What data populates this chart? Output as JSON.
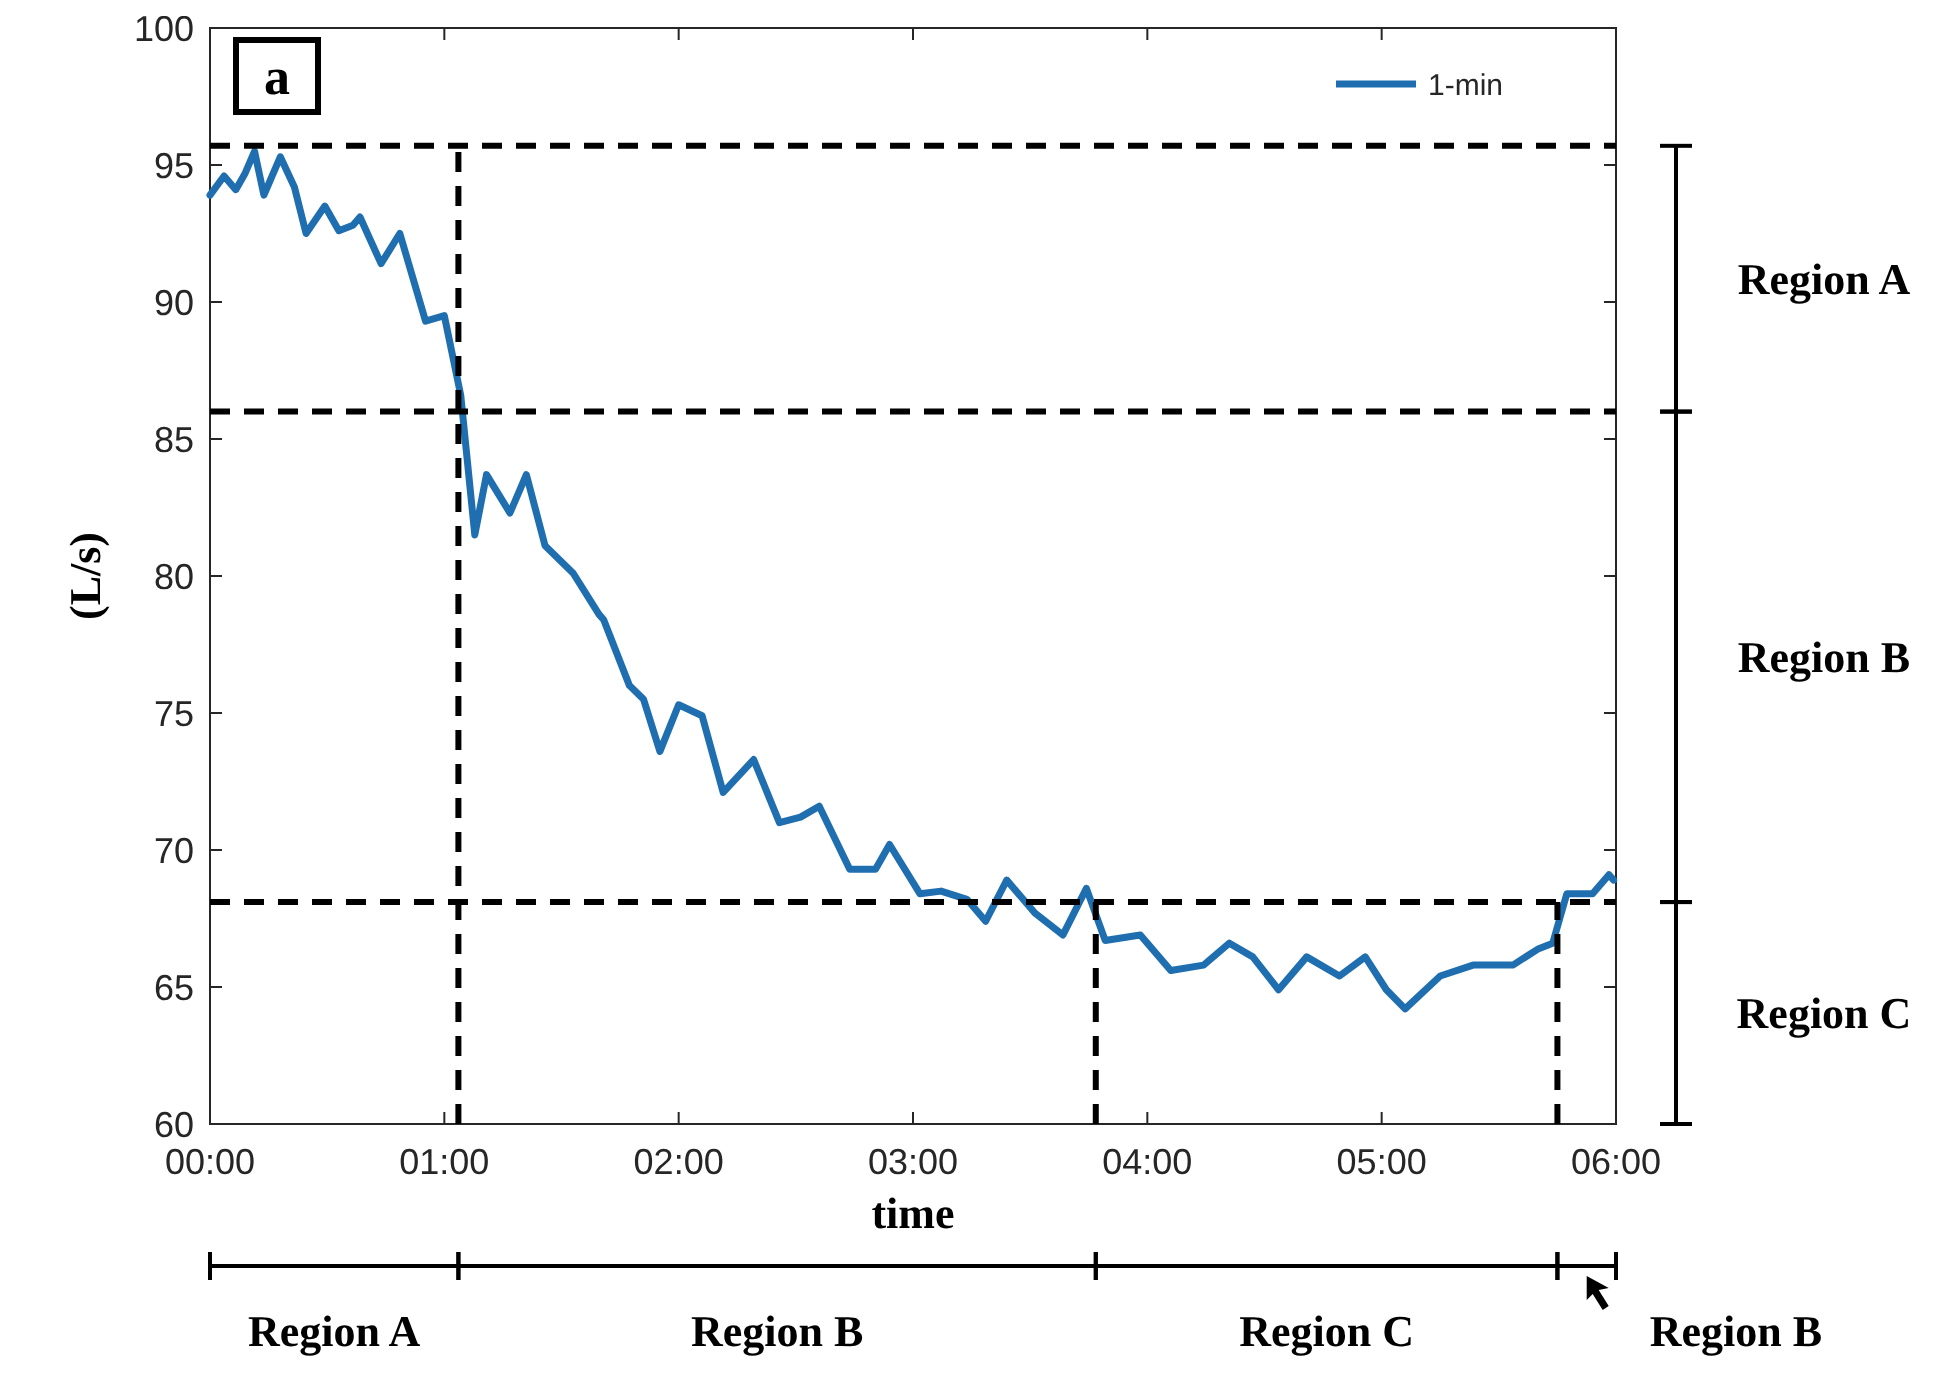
{
  "chart_data": {
    "type": "line",
    "title": "a",
    "xlabel": "time",
    "ylabel": "(L/s)",
    "xlim": [
      0,
      6
    ],
    "xticks": [
      {
        "value": 0,
        "label": "00:00"
      },
      {
        "value": 1,
        "label": "01:00"
      },
      {
        "value": 2,
        "label": "02:00"
      },
      {
        "value": 3,
        "label": "03:00"
      },
      {
        "value": 4,
        "label": "04:00"
      },
      {
        "value": 5,
        "label": "05:00"
      },
      {
        "value": 6,
        "label": "06:00"
      }
    ],
    "ylim": [
      60,
      100
    ],
    "yticks": [
      60,
      65,
      70,
      75,
      80,
      85,
      90,
      95,
      100
    ],
    "x": [
      0,
      0.06,
      0.11,
      0.15,
      0.19,
      0.23,
      0.3,
      0.36,
      0.41,
      0.49,
      0.55,
      0.61,
      0.64,
      0.73,
      0.81,
      0.92,
      1.0,
      1.07,
      1.13,
      1.18,
      1.28,
      1.35,
      1.43,
      1.55,
      1.66,
      1.68,
      1.79,
      1.85,
      1.92,
      2.0,
      2.1,
      2.19,
      2.32,
      2.43,
      2.52,
      2.6,
      2.73,
      2.84,
      2.9,
      3.03,
      3.12,
      3.23,
      3.31,
      3.4,
      3.52,
      3.64,
      3.74,
      3.82,
      3.97,
      4.1,
      4.24,
      4.35,
      4.45,
      4.56,
      4.68,
      4.82,
      4.93,
      5.02,
      5.1,
      5.25,
      5.39,
      5.56,
      5.67,
      5.73,
      5.79,
      5.9,
      5.97,
      5.99
    ],
    "series": [
      {
        "name": "1-min",
        "color": "#1f6fb0",
        "values": [
          93.9,
          94.6,
          94.1,
          94.7,
          95.5,
          93.9,
          95.3,
          94.2,
          92.5,
          93.5,
          92.6,
          92.8,
          93.1,
          91.4,
          92.5,
          89.3,
          89.5,
          86.6,
          81.5,
          83.7,
          82.3,
          83.7,
          81.1,
          80.1,
          78.6,
          78.4,
          76.0,
          75.5,
          73.6,
          75.3,
          74.9,
          72.1,
          73.3,
          71.0,
          71.2,
          71.6,
          69.3,
          69.3,
          70.2,
          68.4,
          68.5,
          68.2,
          67.4,
          68.9,
          67.7,
          66.9,
          68.6,
          66.7,
          66.9,
          65.6,
          65.8,
          66.6,
          66.1,
          64.9,
          66.1,
          65.4,
          66.1,
          64.9,
          64.2,
          65.4,
          65.8,
          65.8,
          66.4,
          66.6,
          68.4,
          68.4,
          69.1,
          68.9
        ]
      }
    ],
    "ref_lines": [
      {
        "axis": "y",
        "value": 95.7,
        "color": "#000000",
        "line_style": "dashed"
      },
      {
        "axis": "y",
        "value": 86,
        "color": "#000000",
        "line_style": "dashed"
      },
      {
        "axis": "y",
        "value": 68.1,
        "color": "#000000",
        "line_style": "dashed"
      },
      {
        "axis": "x",
        "value": 1.06,
        "color": "#000000",
        "line_style": "dashed"
      },
      {
        "axis": "x",
        "value": 3.78,
        "color": "#000000",
        "line_style": "dashed"
      },
      {
        "axis": "x",
        "value": 5.75,
        "color": "#000000",
        "line_style": "dashed"
      }
    ],
    "annotations": [
      "Region A",
      "Region B",
      "Region C",
      "Region A",
      "Region B",
      "Region C",
      "Region B"
    ],
    "legend": "top right",
    "marker": "none",
    "line_style": "solid",
    "grid": false
  }
}
